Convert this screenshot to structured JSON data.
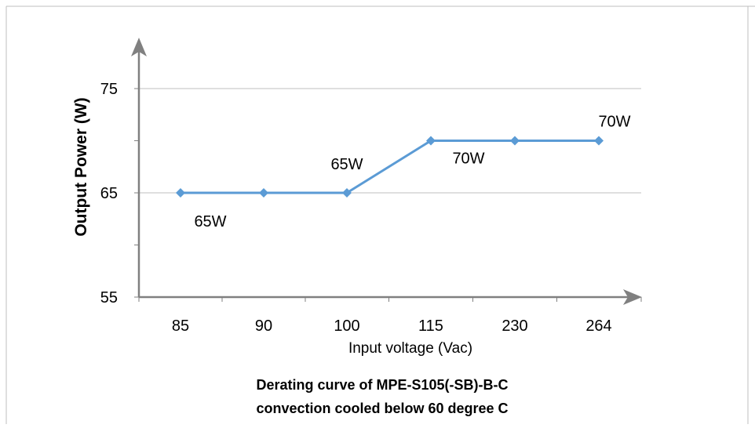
{
  "chart_data": {
    "type": "line",
    "categories": [
      "85",
      "90",
      "100",
      "115",
      "230",
      "264"
    ],
    "series": [
      {
        "values": [
          65,
          65,
          65,
          70,
          70,
          70
        ],
        "color": "#5b9bd5"
      }
    ],
    "yticks": [
      "55",
      "65",
      "75"
    ],
    "ylim": [
      55,
      75
    ],
    "xlabel": "Input voltage (Vac)",
    "ylabel": "Output Power (W)",
    "data_labels": [
      {
        "index": 0,
        "text": "65W"
      },
      {
        "index": 2,
        "text": "65W"
      },
      {
        "index": 3,
        "text": "70W"
      },
      {
        "index": 5,
        "text": "70W"
      }
    ],
    "caption_line1": "Derating curve of MPE-S105(-SB)-B-C",
    "caption_line2": "convection cooled below 60 degree C",
    "grid": true,
    "axis_color": "#808080",
    "grid_color": "#bfbfbf"
  }
}
